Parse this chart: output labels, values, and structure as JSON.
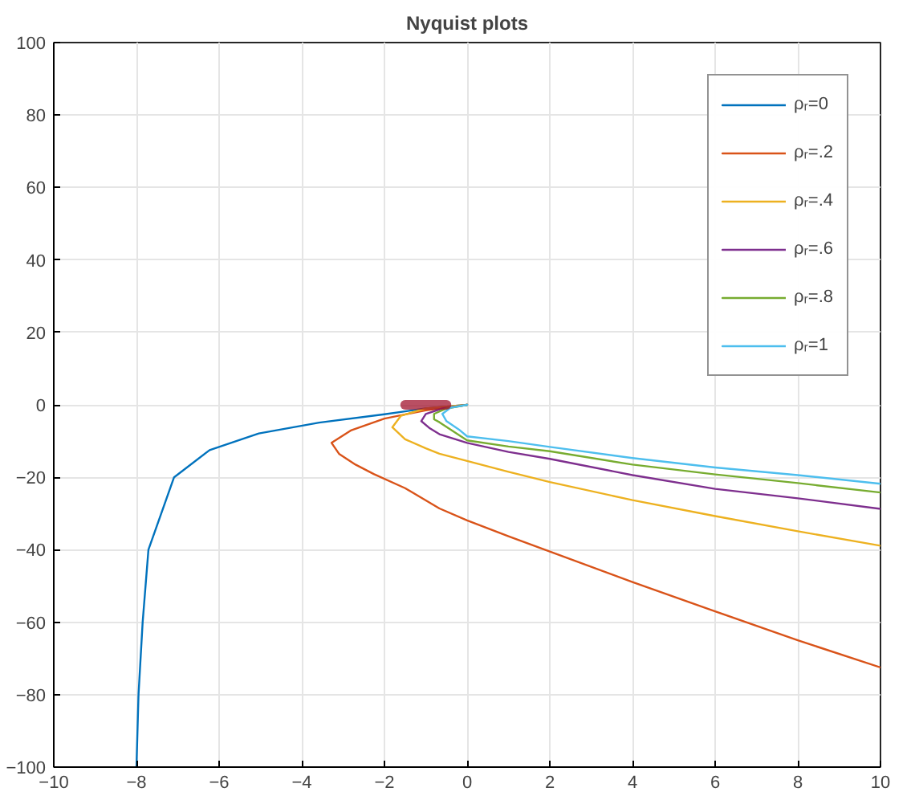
{
  "chart_data": {
    "type": "line",
    "title": "Nyquist plots",
    "xlim": [
      -10,
      10
    ],
    "ylim": [
      -100,
      100
    ],
    "xticks": [
      -10,
      -8,
      -6,
      -4,
      -2,
      0,
      2,
      4,
      6,
      8,
      10
    ],
    "yticks": [
      -100,
      -80,
      -60,
      -40,
      -20,
      0,
      20,
      40,
      60,
      80,
      100
    ],
    "grid": true,
    "legend": "top right",
    "line_style": "solid",
    "marker": "none",
    "series": [
      {
        "name": "ρᵣ=0",
        "color": "#0072bd",
        "x": [
          -8,
          -7.95,
          -7.85,
          -7.71,
          -7.09,
          -6.23,
          -5.04,
          -3.58,
          -2,
          -1,
          0
        ],
        "values": [
          -100,
          -80,
          -60,
          -40,
          -20,
          -12.5,
          -7.9,
          -4.9,
          -2.6,
          -1,
          0
        ]
      },
      {
        "name": "ρᵣ=.2",
        "color": "#d95319",
        "x": [
          0,
          -1,
          -2,
          -2.8,
          -3.28,
          -3.1,
          -2.7,
          -2.26,
          -1.5,
          -0.67,
          0,
          1,
          2,
          4,
          6,
          8,
          10
        ],
        "values": [
          0,
          -1.5,
          -3.8,
          -7,
          -10.5,
          -13.5,
          -16.5,
          -19.1,
          -23,
          -28.6,
          -31.9,
          -36.3,
          -40.5,
          -48.9,
          -57,
          -65,
          -72.5
        ]
      },
      {
        "name": "ρᵣ=.4",
        "color": "#edb120",
        "x": [
          0,
          -1,
          -1.6,
          -1.81,
          -1.5,
          -1,
          -0.67,
          0,
          1,
          2,
          4,
          6,
          8,
          10
        ],
        "values": [
          0,
          -1,
          -3,
          -6.2,
          -9.5,
          -12,
          -13.5,
          -15.5,
          -18.5,
          -21.3,
          -26.3,
          -30.7,
          -34.9,
          -38.9
        ]
      },
      {
        "name": "ρᵣ=.6",
        "color": "#7e2f8e",
        "x": [
          0,
          -0.6,
          -1,
          -1.11,
          -0.9,
          -0.67,
          0,
          1,
          2,
          4,
          6,
          8,
          10
        ],
        "values": [
          0,
          -1,
          -2.5,
          -4.5,
          -6.5,
          -8.1,
          -10.5,
          -13,
          -14.9,
          -19.4,
          -23.2,
          -25.8,
          -28.7
        ]
      },
      {
        "name": "ρᵣ=.8",
        "color": "#77ac30",
        "x": [
          0,
          -0.5,
          -0.8,
          -0.8,
          -0.67,
          0,
          1,
          2,
          4,
          6,
          8,
          10
        ],
        "values": [
          0,
          -1,
          -2.5,
          -4,
          -4.8,
          -9.8,
          -11.5,
          -12.8,
          -16.5,
          -19.2,
          -21.6,
          -24.2
        ]
      },
      {
        "name": "ρᵣ=1",
        "color": "#4dbeee",
        "x": [
          0,
          -0.4,
          -0.6,
          -0.5,
          -0.2,
          0,
          1,
          2,
          4,
          6,
          8,
          10
        ],
        "values": [
          0,
          -0.8,
          -2.5,
          -4.5,
          -6.8,
          -8.7,
          -10,
          -11.6,
          -14.7,
          -17.3,
          -19.4,
          -21.8
        ]
      },
      {
        "color": "#a2142f",
        "x": [
          -1.5,
          -1,
          -0.5
        ],
        "values": [
          0,
          0,
          0
        ]
      }
    ]
  }
}
